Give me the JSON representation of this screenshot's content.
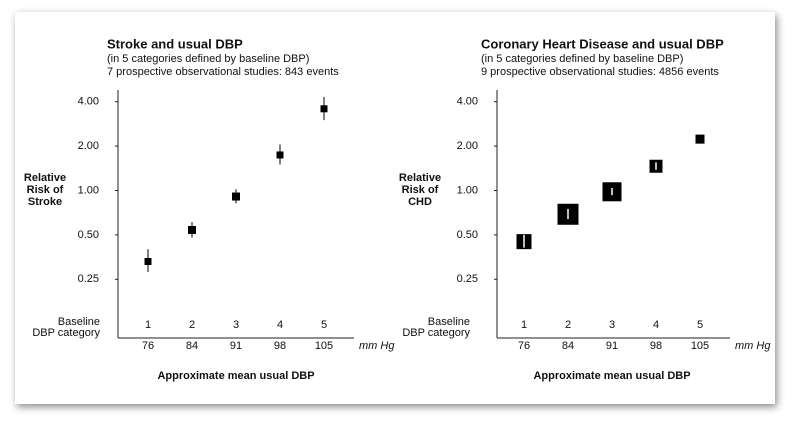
{
  "chart_data": [
    {
      "type": "scatter",
      "title": "Stroke and usual DBP",
      "subtitle": [
        "(in 5 categories defined by baseline DBP)",
        "7 prospective observational studies: 843 events"
      ],
      "ylabel": [
        "Relative",
        "Risk of",
        "Stroke"
      ],
      "xlabel": "Approximate mean usual DBP",
      "baseline_label": [
        "Baseline",
        "DBP category"
      ],
      "unit": "mm Hg",
      "baseline_categories": [
        "1",
        "2",
        "3",
        "4",
        "5"
      ],
      "categories": [
        "76",
        "84",
        "91",
        "98",
        "105"
      ],
      "values": [
        0.33,
        0.54,
        0.91,
        1.74,
        3.58
      ],
      "ci_low": [
        0.28,
        0.48,
        0.82,
        1.5,
        3.0
      ],
      "ci_high": [
        0.4,
        0.61,
        1.02,
        2.05,
        4.3
      ],
      "marker_size": [
        7,
        8,
        8,
        7,
        7
      ],
      "color": "#000000",
      "log_scale": true,
      "ylim": [
        0.1,
        4.8
      ],
      "yticks": [
        {
          "value": 0.25,
          "label": "0.25"
        },
        {
          "value": 0.5,
          "label": "0.50"
        },
        {
          "value": 1,
          "label": "1.00"
        },
        {
          "value": 2,
          "label": "2.00"
        },
        {
          "value": 4,
          "label": "4.00"
        }
      ]
    },
    {
      "type": "scatter",
      "title": "Coronary Heart Disease and usual DBP",
      "subtitle": [
        "(in 5 categories defined by baseline DBP)",
        "9 prospective observational studies: 4856 events"
      ],
      "ylabel": [
        "Relative",
        "Risk of",
        "CHD"
      ],
      "xlabel": "Approximate mean usual DBP",
      "baseline_label": [
        "Baseline",
        "DBP category"
      ],
      "unit": "mm Hg",
      "baseline_categories": [
        "1",
        "2",
        "3",
        "4",
        "5"
      ],
      "categories": [
        "76",
        "84",
        "91",
        "98",
        "105"
      ],
      "values": [
        0.45,
        0.69,
        0.98,
        1.46,
        2.23
      ],
      "ci_low": [
        0.41,
        0.64,
        0.93,
        1.38,
        2.08
      ],
      "ci_high": [
        0.5,
        0.75,
        1.04,
        1.55,
        2.38
      ],
      "marker_size": [
        15,
        21,
        19,
        13,
        9
      ],
      "color": "#000000",
      "log_scale": true,
      "ylim": [
        0.1,
        4.8
      ],
      "yticks": [
        {
          "value": 0.25,
          "label": "0.25"
        },
        {
          "value": 0.5,
          "label": "0.50"
        },
        {
          "value": 1,
          "label": "1.00"
        },
        {
          "value": 2,
          "label": "2.00"
        },
        {
          "value": 4,
          "label": "4.00"
        }
      ]
    }
  ]
}
